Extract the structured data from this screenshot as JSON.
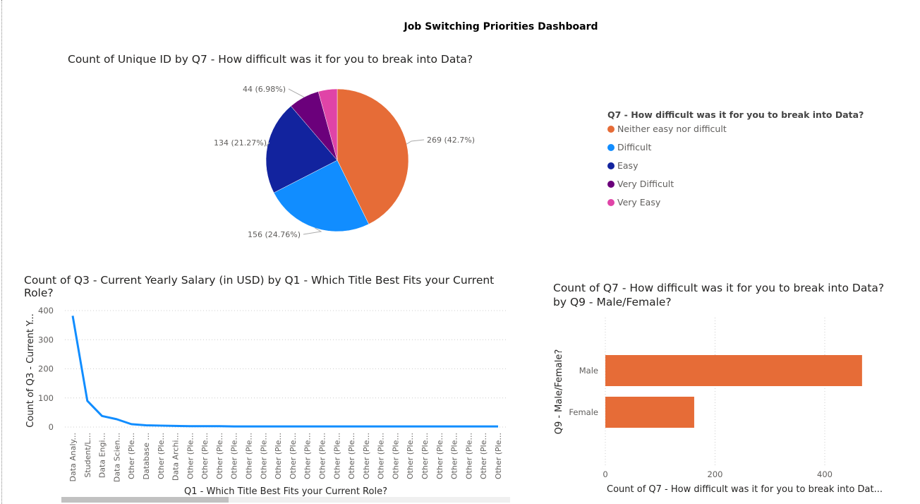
{
  "dashboard_title": "Job Switching Priorities Dashboard",
  "chart_data": [
    {
      "type": "pie",
      "title": "Count of Unique ID by Q7 - How difficult was it for you to break into Data?",
      "legend_title": "Q7 - How difficult was it for you to break into Data?",
      "legend_position": "right",
      "slices": [
        {
          "label": "Neither easy nor difficult",
          "value": 269,
          "data_label": "269 (42.7%)",
          "color": "#E66C37"
        },
        {
          "label": "Difficult",
          "value": 156,
          "data_label": "156 (24.76%)",
          "color": "#118DFF"
        },
        {
          "label": "Easy",
          "value": 134,
          "data_label": "134 (21.27%)",
          "color": "#12239E"
        },
        {
          "label": "Very Difficult",
          "value": 44,
          "data_label": "44 (6.98%)",
          "color": "#6B007B"
        },
        {
          "label": "Very Easy",
          "value": 27,
          "data_label": "",
          "color": "#E044A7"
        }
      ]
    },
    {
      "type": "line",
      "title": "Count of Q3 - Current Yearly Salary (in USD) by Q1 - Which Title Best Fits your Current Role?",
      "xlabel": "Q1 - Which Title Best Fits your Current Role?",
      "ylabel": "Count of Q3 - Current Y...",
      "ylim": [
        0,
        400
      ],
      "yticks": [
        0,
        100,
        200,
        300,
        400
      ],
      "grid": true,
      "color": "#118DFF",
      "categories": [
        "Data Analy...",
        "Student/L...",
        "Data Engi...",
        "Data Scien...",
        "Other (Ple...",
        "Database ...",
        "Other (Ple...",
        "Data Archi...",
        "Other (Ple...",
        "Other (Ple...",
        "Other (Ple...",
        "Other (Ple...",
        "Other (Ple...",
        "Other (Ple...",
        "Other (Ple...",
        "Other (Ple...",
        "Other (Ple...",
        "Other (Ple...",
        "Other (Ple...",
        "Other (Ple...",
        "Other (Ple...",
        "Other (Ple...",
        "Other (Ple...",
        "Other (Ple...",
        "Other (Ple...",
        "Other (Ple...",
        "Other (Ple...",
        "Other (Ple...",
        "Other (Ple...",
        "Other (Ple..."
      ],
      "values": [
        382,
        90,
        38,
        27,
        10,
        6,
        5,
        4,
        3,
        3,
        3,
        2,
        2,
        2,
        2,
        2,
        2,
        2,
        2,
        2,
        2,
        2,
        2,
        2,
        2,
        2,
        2,
        2,
        2,
        2
      ]
    },
    {
      "type": "bar",
      "orientation": "horizontal",
      "title": "Count of Q7 - How difficult was it for you to break into Data? by Q9 - Male/Female?",
      "title_lines": [
        "Count of Q7 - How difficult was it for you to break into Data?",
        "by Q9 - Male/Female?"
      ],
      "xlabel": "Count of Q7 - How difficult was it for you to break into Dat...",
      "ylabel": "Q9 - Male/Female?",
      "xlim": [
        0,
        470
      ],
      "xticks": [
        "0",
        "200",
        "400"
      ],
      "grid": true,
      "color": "#E66C37",
      "categories": [
        "Male",
        "Female"
      ],
      "values": [
        468,
        162
      ]
    }
  ],
  "line_title_lines": [
    "Count of Q3 - Current Yearly Salary (in USD) by Q1 - Which Title Best Fits your Current",
    "Role?"
  ]
}
